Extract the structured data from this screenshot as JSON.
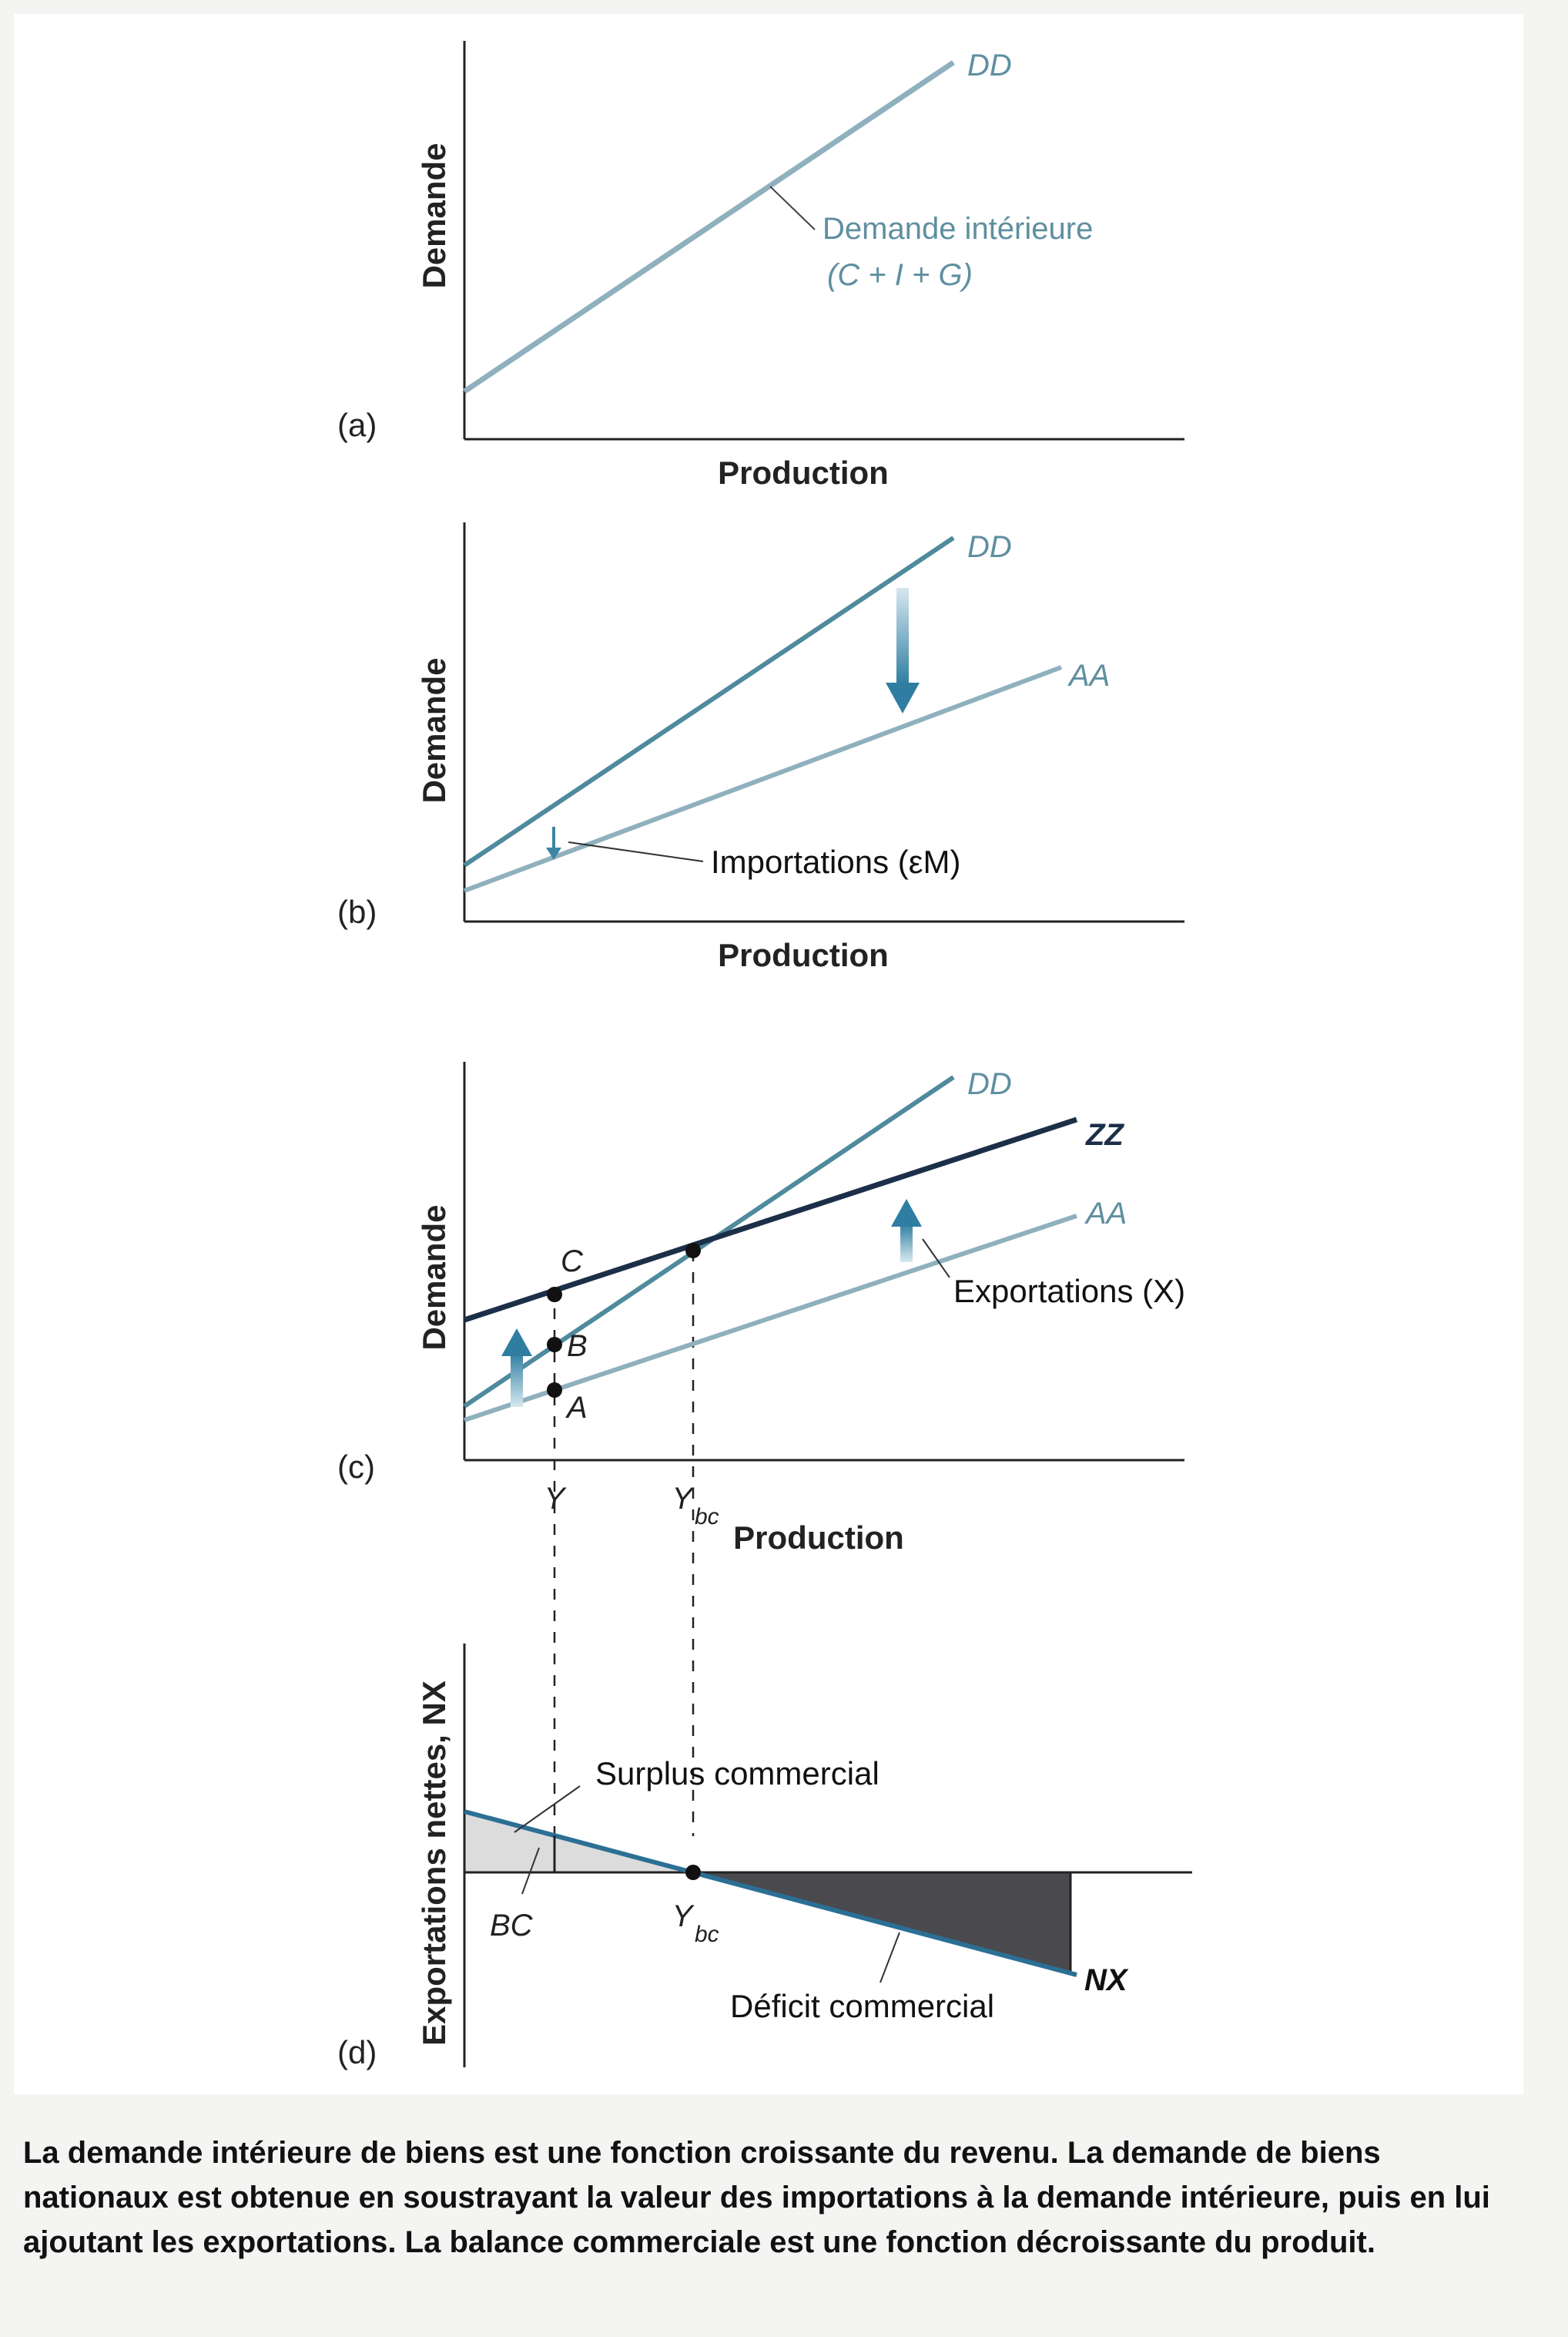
{
  "panels": {
    "a": {
      "label": "(a)",
      "ylabel": "Demande",
      "xlabel": "Production",
      "curve_dd": "DD",
      "annotation_line1": "Demande intérieure",
      "annotation_line2": "(C + I + G)"
    },
    "b": {
      "label": "(b)",
      "ylabel": "Demande",
      "xlabel": "Production",
      "curve_dd": "DD",
      "curve_aa": "AA",
      "annotation": "Importations (εM)"
    },
    "c": {
      "label": "(c)",
      "ylabel": "Demande",
      "xlabel": "Production",
      "curve_dd": "DD",
      "curve_zz": "ZZ",
      "curve_aa": "AA",
      "annotation": "Exportations (X)",
      "point_a": "A",
      "point_b": "B",
      "point_c": "C",
      "tick_y": "Y",
      "tick_ybc": "Y",
      "tick_ybc_sub": "bc"
    },
    "d": {
      "label": "(d)",
      "ylabel": "Exportations nettes, NX",
      "surplus": "Surplus commercial",
      "deficit": "Déficit commercial",
      "bc": "BC",
      "tick_ybc": "Y",
      "tick_ybc_sub": "bc",
      "curve_nx": "NX"
    }
  },
  "caption": "La demande intérieure de biens est une fonction croissante du revenu. La demande de biens nationaux est obtenue en soustrayant la valeur des importations à la demande intérieure, puis en lui ajoutant les exportations. La balance commerciale est une fonction décroissante du produit.",
  "colors": {
    "light_line": "#8fb0bd",
    "mid_line": "#4f8a9d",
    "dark_line": "#1c2f48",
    "arrow": "#3d86a6",
    "surplus_fill": "#dcdcdc",
    "deficit_fill": "#4a4a4e"
  }
}
